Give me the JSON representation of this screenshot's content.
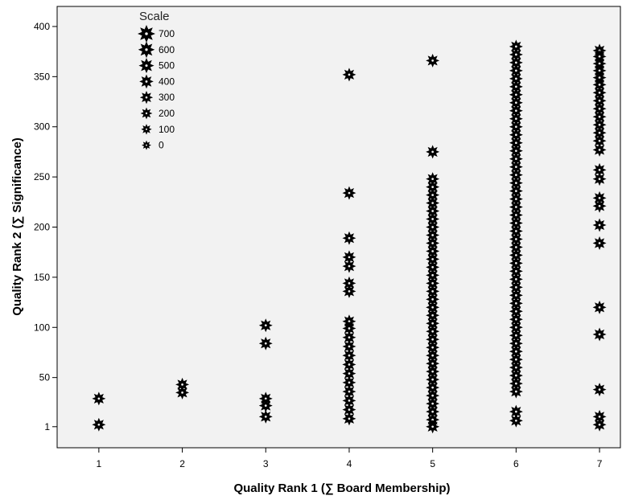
{
  "chart_data": {
    "type": "scatter",
    "title": "",
    "xlabel": "Quality Rank 1 (∑ Board Membership)",
    "ylabel": "Quality Rank 2 (∑ Significance)",
    "xlim": [
      0.5,
      7.25
    ],
    "ylim": [
      -20,
      420
    ],
    "x_ticks": [
      1,
      2,
      3,
      4,
      5,
      6,
      7
    ],
    "y_ticks": [
      1,
      50,
      100,
      150,
      200,
      250,
      300,
      350,
      400
    ],
    "grid": false,
    "background": "#f2f2f2",
    "marker_color": "#000000",
    "marker": "star",
    "legend": {
      "title": "Scale",
      "placement": "top-left",
      "entries": [
        "700",
        "600",
        "500",
        "400",
        "300",
        "200",
        "100",
        "0"
      ]
    },
    "points": [
      {
        "x": 1,
        "y": 29
      },
      {
        "x": 1,
        "y": 3
      },
      {
        "x": 2,
        "y": 43
      },
      {
        "x": 2,
        "y": 35
      },
      {
        "x": 3,
        "y": 102
      },
      {
        "x": 3,
        "y": 84
      },
      {
        "x": 3,
        "y": 29
      },
      {
        "x": 3,
        "y": 22
      },
      {
        "x": 3,
        "y": 11
      },
      {
        "x": 4,
        "y": 352
      },
      {
        "x": 4,
        "y": 234
      },
      {
        "x": 4,
        "y": 189
      },
      {
        "x": 4,
        "y": 170
      },
      {
        "x": 4,
        "y": 161
      },
      {
        "x": 4,
        "y": 144
      },
      {
        "x": 4,
        "y": 136
      },
      {
        "x": 4,
        "y": 106
      },
      {
        "x": 4,
        "y": 99
      },
      {
        "x": 4,
        "y": 90
      },
      {
        "x": 4,
        "y": 81
      },
      {
        "x": 4,
        "y": 72
      },
      {
        "x": 4,
        "y": 63
      },
      {
        "x": 4,
        "y": 54
      },
      {
        "x": 4,
        "y": 45
      },
      {
        "x": 4,
        "y": 36
      },
      {
        "x": 4,
        "y": 27
      },
      {
        "x": 4,
        "y": 18
      },
      {
        "x": 4,
        "y": 9
      },
      {
        "x": 5,
        "y": 366
      },
      {
        "x": 5,
        "y": 275
      },
      {
        "x": 5,
        "y": 248
      },
      {
        "x": 5,
        "y": 240
      },
      {
        "x": 5,
        "y": 232
      },
      {
        "x": 5,
        "y": 224
      },
      {
        "x": 5,
        "y": 216
      },
      {
        "x": 5,
        "y": 208
      },
      {
        "x": 5,
        "y": 200
      },
      {
        "x": 5,
        "y": 192
      },
      {
        "x": 5,
        "y": 184
      },
      {
        "x": 5,
        "y": 176
      },
      {
        "x": 5,
        "y": 168
      },
      {
        "x": 5,
        "y": 160
      },
      {
        "x": 5,
        "y": 152
      },
      {
        "x": 5,
        "y": 144
      },
      {
        "x": 5,
        "y": 136
      },
      {
        "x": 5,
        "y": 128
      },
      {
        "x": 5,
        "y": 120
      },
      {
        "x": 5,
        "y": 112
      },
      {
        "x": 5,
        "y": 104
      },
      {
        "x": 5,
        "y": 96
      },
      {
        "x": 5,
        "y": 88
      },
      {
        "x": 5,
        "y": 80
      },
      {
        "x": 5,
        "y": 72
      },
      {
        "x": 5,
        "y": 64
      },
      {
        "x": 5,
        "y": 56
      },
      {
        "x": 5,
        "y": 48
      },
      {
        "x": 5,
        "y": 40
      },
      {
        "x": 5,
        "y": 32
      },
      {
        "x": 5,
        "y": 24
      },
      {
        "x": 5,
        "y": 16
      },
      {
        "x": 5,
        "y": 8
      },
      {
        "x": 5,
        "y": 1
      },
      {
        "x": 6,
        "y": 380
      },
      {
        "x": 6,
        "y": 372
      },
      {
        "x": 6,
        "y": 364
      },
      {
        "x": 6,
        "y": 356
      },
      {
        "x": 6,
        "y": 348
      },
      {
        "x": 6,
        "y": 340
      },
      {
        "x": 6,
        "y": 332
      },
      {
        "x": 6,
        "y": 324
      },
      {
        "x": 6,
        "y": 316
      },
      {
        "x": 6,
        "y": 308
      },
      {
        "x": 6,
        "y": 300
      },
      {
        "x": 6,
        "y": 292
      },
      {
        "x": 6,
        "y": 284
      },
      {
        "x": 6,
        "y": 276
      },
      {
        "x": 6,
        "y": 268
      },
      {
        "x": 6,
        "y": 260
      },
      {
        "x": 6,
        "y": 252
      },
      {
        "x": 6,
        "y": 244
      },
      {
        "x": 6,
        "y": 236
      },
      {
        "x": 6,
        "y": 228
      },
      {
        "x": 6,
        "y": 220
      },
      {
        "x": 6,
        "y": 212
      },
      {
        "x": 6,
        "y": 204
      },
      {
        "x": 6,
        "y": 196
      },
      {
        "x": 6,
        "y": 188
      },
      {
        "x": 6,
        "y": 180
      },
      {
        "x": 6,
        "y": 172
      },
      {
        "x": 6,
        "y": 164
      },
      {
        "x": 6,
        "y": 156
      },
      {
        "x": 6,
        "y": 148
      },
      {
        "x": 6,
        "y": 140
      },
      {
        "x": 6,
        "y": 132
      },
      {
        "x": 6,
        "y": 124
      },
      {
        "x": 6,
        "y": 116
      },
      {
        "x": 6,
        "y": 108
      },
      {
        "x": 6,
        "y": 100
      },
      {
        "x": 6,
        "y": 92
      },
      {
        "x": 6,
        "y": 84
      },
      {
        "x": 6,
        "y": 76
      },
      {
        "x": 6,
        "y": 68
      },
      {
        "x": 6,
        "y": 60
      },
      {
        "x": 6,
        "y": 52
      },
      {
        "x": 6,
        "y": 44
      },
      {
        "x": 6,
        "y": 36
      },
      {
        "x": 6,
        "y": 16
      },
      {
        "x": 6,
        "y": 7
      },
      {
        "x": 7,
        "y": 376
      },
      {
        "x": 7,
        "y": 370
      },
      {
        "x": 7,
        "y": 363
      },
      {
        "x": 7,
        "y": 356
      },
      {
        "x": 7,
        "y": 349
      },
      {
        "x": 7,
        "y": 342
      },
      {
        "x": 7,
        "y": 334
      },
      {
        "x": 7,
        "y": 326
      },
      {
        "x": 7,
        "y": 318
      },
      {
        "x": 7,
        "y": 310
      },
      {
        "x": 7,
        "y": 302
      },
      {
        "x": 7,
        "y": 294
      },
      {
        "x": 7,
        "y": 286
      },
      {
        "x": 7,
        "y": 277
      },
      {
        "x": 7,
        "y": 257
      },
      {
        "x": 7,
        "y": 248
      },
      {
        "x": 7,
        "y": 229
      },
      {
        "x": 7,
        "y": 221
      },
      {
        "x": 7,
        "y": 202
      },
      {
        "x": 7,
        "y": 184
      },
      {
        "x": 7,
        "y": 120
      },
      {
        "x": 7,
        "y": 93
      },
      {
        "x": 7,
        "y": 38
      },
      {
        "x": 7,
        "y": 11
      },
      {
        "x": 7,
        "y": 3
      }
    ]
  }
}
